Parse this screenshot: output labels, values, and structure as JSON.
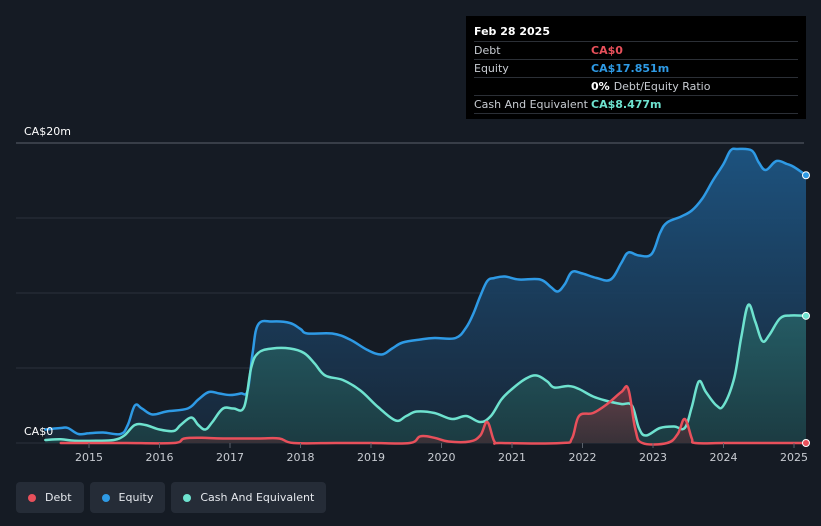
{
  "tooltip": {
    "date": "Feb 28 2025",
    "rows": [
      {
        "label": "Debt",
        "value": "CA$0",
        "color": "#e8505b",
        "extra": ""
      },
      {
        "label": "Equity",
        "value": "CA$17.851m",
        "color": "#2e9ae5",
        "extra": ""
      },
      {
        "label": "",
        "value": "0%",
        "color": "#ffffff",
        "extra": "Debt/Equity Ratio"
      },
      {
        "label": "Cash And Equivalent",
        "value": "CA$8.477m",
        "color": "#6ee2cf",
        "extra": ""
      }
    ]
  },
  "legend": [
    {
      "label": "Debt",
      "color": "#e8505b"
    },
    {
      "label": "Equity",
      "color": "#2e9ae5"
    },
    {
      "label": "Cash And Equivalent",
      "color": "#6ee2cf"
    }
  ],
  "chart_data": {
    "type": "area",
    "ylim": [
      0,
      20
    ],
    "xlim": [
      2014.38,
      2025.17
    ],
    "y_unit_label_top": "CA$20m",
    "y_unit_label_bottom": "CA$0",
    "x_ticks": [
      "2015",
      "2016",
      "2017",
      "2018",
      "2019",
      "2020",
      "2021",
      "2022",
      "2023",
      "2024",
      "2025"
    ],
    "series": [
      {
        "name": "Equity",
        "color": "#2e9ae5",
        "points": [
          [
            2014.38,
            0.9
          ],
          [
            2014.6,
            1.0
          ],
          [
            2014.7,
            1.0
          ],
          [
            2014.85,
            0.6
          ],
          [
            2015.0,
            0.65
          ],
          [
            2015.2,
            0.7
          ],
          [
            2015.45,
            0.6
          ],
          [
            2015.55,
            1.2
          ],
          [
            2015.65,
            2.5
          ],
          [
            2015.75,
            2.3
          ],
          [
            2015.9,
            1.9
          ],
          [
            2016.1,
            2.1
          ],
          [
            2016.4,
            2.3
          ],
          [
            2016.55,
            2.9
          ],
          [
            2016.7,
            3.4
          ],
          [
            2016.85,
            3.3
          ],
          [
            2017.0,
            3.2
          ],
          [
            2017.15,
            3.3
          ],
          [
            2017.25,
            3.5
          ],
          [
            2017.32,
            6.0
          ],
          [
            2017.4,
            7.9
          ],
          [
            2017.6,
            8.1
          ],
          [
            2017.85,
            8.0
          ],
          [
            2018.0,
            7.6
          ],
          [
            2018.1,
            7.3
          ],
          [
            2018.45,
            7.3
          ],
          [
            2018.7,
            6.9
          ],
          [
            2018.95,
            6.2
          ],
          [
            2019.15,
            5.9
          ],
          [
            2019.3,
            6.3
          ],
          [
            2019.45,
            6.7
          ],
          [
            2019.7,
            6.9
          ],
          [
            2019.9,
            7.0
          ],
          [
            2020.2,
            7.0
          ],
          [
            2020.35,
            7.7
          ],
          [
            2020.45,
            8.6
          ],
          [
            2020.55,
            9.8
          ],
          [
            2020.65,
            10.8
          ],
          [
            2020.75,
            11.0
          ],
          [
            2020.9,
            11.1
          ],
          [
            2021.1,
            10.9
          ],
          [
            2021.4,
            10.9
          ],
          [
            2021.55,
            10.4
          ],
          [
            2021.65,
            10.1
          ],
          [
            2021.75,
            10.6
          ],
          [
            2021.85,
            11.4
          ],
          [
            2022.0,
            11.3
          ],
          [
            2022.2,
            11.0
          ],
          [
            2022.4,
            10.9
          ],
          [
            2022.55,
            12.0
          ],
          [
            2022.65,
            12.7
          ],
          [
            2022.8,
            12.5
          ],
          [
            2022.98,
            12.6
          ],
          [
            2023.1,
            14.0
          ],
          [
            2023.2,
            14.7
          ],
          [
            2023.4,
            15.1
          ],
          [
            2023.55,
            15.5
          ],
          [
            2023.7,
            16.3
          ],
          [
            2023.85,
            17.5
          ],
          [
            2024.0,
            18.6
          ],
          [
            2024.1,
            19.5
          ],
          [
            2024.2,
            19.6
          ],
          [
            2024.4,
            19.5
          ],
          [
            2024.5,
            18.7
          ],
          [
            2024.6,
            18.2
          ],
          [
            2024.75,
            18.8
          ],
          [
            2024.9,
            18.6
          ],
          [
            2025.0,
            18.4
          ],
          [
            2025.17,
            17.851
          ]
        ]
      },
      {
        "name": "Cash And Equivalent",
        "color": "#6ee2cf",
        "points": [
          [
            2014.38,
            0.2
          ],
          [
            2014.6,
            0.25
          ],
          [
            2014.8,
            0.15
          ],
          [
            2015.1,
            0.15
          ],
          [
            2015.35,
            0.2
          ],
          [
            2015.5,
            0.5
          ],
          [
            2015.65,
            1.2
          ],
          [
            2015.8,
            1.2
          ],
          [
            2016.0,
            0.9
          ],
          [
            2016.2,
            0.8
          ],
          [
            2016.3,
            1.2
          ],
          [
            2016.45,
            1.7
          ],
          [
            2016.55,
            1.2
          ],
          [
            2016.65,
            0.9
          ],
          [
            2016.75,
            1.4
          ],
          [
            2016.9,
            2.3
          ],
          [
            2017.05,
            2.3
          ],
          [
            2017.2,
            2.4
          ],
          [
            2017.3,
            5.0
          ],
          [
            2017.4,
            6.0
          ],
          [
            2017.6,
            6.3
          ],
          [
            2017.85,
            6.3
          ],
          [
            2018.05,
            6.0
          ],
          [
            2018.2,
            5.3
          ],
          [
            2018.35,
            4.5
          ],
          [
            2018.6,
            4.2
          ],
          [
            2018.85,
            3.5
          ],
          [
            2019.1,
            2.4
          ],
          [
            2019.35,
            1.5
          ],
          [
            2019.5,
            1.8
          ],
          [
            2019.65,
            2.1
          ],
          [
            2019.9,
            2.0
          ],
          [
            2020.15,
            1.6
          ],
          [
            2020.35,
            1.8
          ],
          [
            2020.55,
            1.4
          ],
          [
            2020.7,
            1.8
          ],
          [
            2020.85,
            2.9
          ],
          [
            2021.0,
            3.6
          ],
          [
            2021.2,
            4.3
          ],
          [
            2021.35,
            4.5
          ],
          [
            2021.5,
            4.1
          ],
          [
            2021.6,
            3.7
          ],
          [
            2021.8,
            3.8
          ],
          [
            2021.95,
            3.6
          ],
          [
            2022.15,
            3.1
          ],
          [
            2022.35,
            2.8
          ],
          [
            2022.55,
            2.6
          ],
          [
            2022.7,
            2.5
          ],
          [
            2022.8,
            1.0
          ],
          [
            2022.9,
            0.5
          ],
          [
            2023.1,
            1.0
          ],
          [
            2023.3,
            1.1
          ],
          [
            2023.45,
            1.0
          ],
          [
            2023.55,
            2.4
          ],
          [
            2023.65,
            4.1
          ],
          [
            2023.75,
            3.4
          ],
          [
            2023.9,
            2.5
          ],
          [
            2024.0,
            2.5
          ],
          [
            2024.15,
            4.3
          ],
          [
            2024.25,
            7.0
          ],
          [
            2024.35,
            9.2
          ],
          [
            2024.45,
            8.1
          ],
          [
            2024.55,
            6.8
          ],
          [
            2024.65,
            7.2
          ],
          [
            2024.8,
            8.3
          ],
          [
            2024.95,
            8.5
          ],
          [
            2025.17,
            8.477
          ]
        ]
      },
      {
        "name": "Debt",
        "color": "#e8505b",
        "points": [
          [
            2014.6,
            0.0
          ],
          [
            2015.0,
            0.0
          ],
          [
            2015.5,
            0.0
          ],
          [
            2016.2,
            0.0
          ],
          [
            2016.35,
            0.3
          ],
          [
            2016.6,
            0.35
          ],
          [
            2016.9,
            0.3
          ],
          [
            2017.4,
            0.3
          ],
          [
            2017.7,
            0.3
          ],
          [
            2017.9,
            0.0
          ],
          [
            2018.5,
            0.0
          ],
          [
            2019.0,
            0.0
          ],
          [
            2019.55,
            0.0
          ],
          [
            2019.7,
            0.45
          ],
          [
            2019.9,
            0.35
          ],
          [
            2020.1,
            0.1
          ],
          [
            2020.4,
            0.1
          ],
          [
            2020.55,
            0.5
          ],
          [
            2020.65,
            1.4
          ],
          [
            2020.75,
            0.1
          ],
          [
            2020.85,
            0.0
          ],
          [
            2021.7,
            0.0
          ],
          [
            2021.85,
            0.3
          ],
          [
            2021.95,
            1.8
          ],
          [
            2022.15,
            2.0
          ],
          [
            2022.35,
            2.6
          ],
          [
            2022.55,
            3.4
          ],
          [
            2022.65,
            3.6
          ],
          [
            2022.75,
            0.9
          ],
          [
            2022.85,
            0.0
          ],
          [
            2023.2,
            0.0
          ],
          [
            2023.35,
            0.6
          ],
          [
            2023.45,
            1.6
          ],
          [
            2023.55,
            0.3
          ],
          [
            2023.6,
            0.0
          ],
          [
            2024.0,
            0.0
          ],
          [
            2024.5,
            0.0
          ],
          [
            2025.17,
            0.0
          ]
        ]
      }
    ]
  }
}
